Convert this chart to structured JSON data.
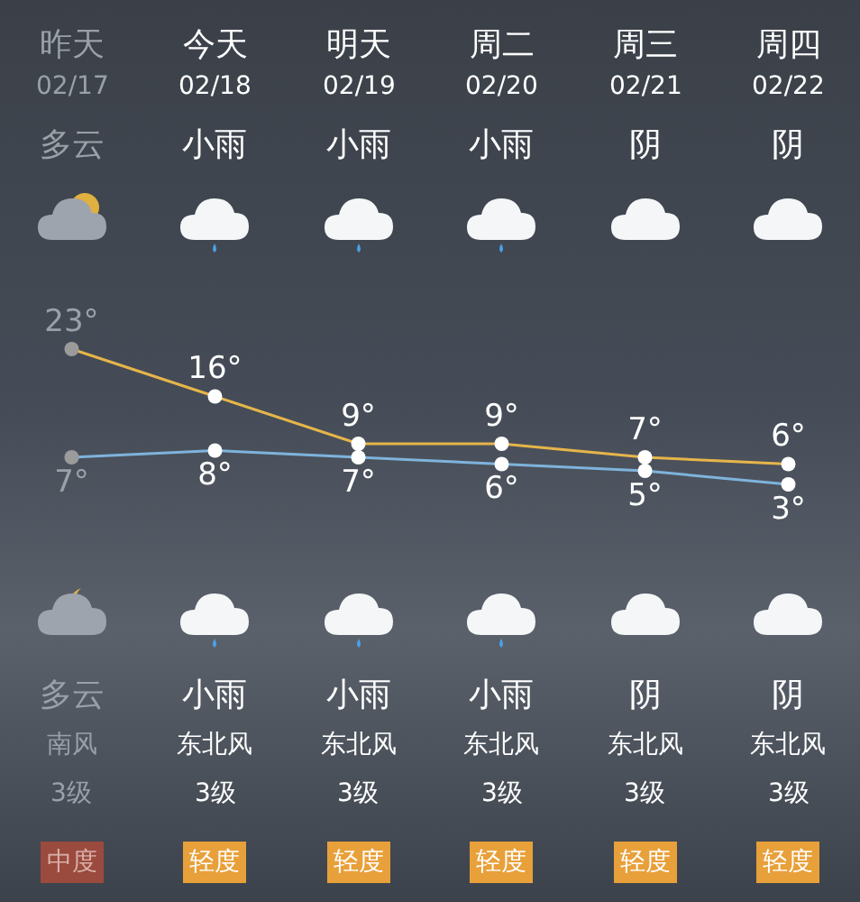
{
  "chart_data": {
    "type": "line",
    "categories": [
      "昨天",
      "今天",
      "明天",
      "周二",
      "周三",
      "周四"
    ],
    "series": [
      {
        "color": "#e6b54a",
        "colors": [
          "#9b9b9b",
          "#ffffff",
          "#ffffff",
          "#ffffff",
          "#ffffff",
          "#ffffff"
        ],
        "values": [
          23,
          16,
          9,
          9,
          7,
          6
        ],
        "value_labels": [
          "23°",
          "16°",
          "9°",
          "9°",
          "7°",
          "6°"
        ]
      },
      {
        "color": "#7fb3dc",
        "colors": [
          "#9b9b9b",
          "#ffffff",
          "#ffffff",
          "#ffffff",
          "#ffffff",
          "#ffffff"
        ],
        "values": [
          7,
          8,
          7,
          6,
          5,
          3
        ],
        "value_labels": [
          "7°",
          "8°",
          "7°",
          "6°",
          "5°",
          "3°"
        ]
      }
    ],
    "marker": "circle",
    "line_style": "solid",
    "annotations": [
      "02/17",
      "02/18",
      "02/19",
      "02/20",
      "02/21",
      "02/22",
      "多云",
      "小雨",
      "小雨",
      "小雨",
      "阴",
      "阴",
      "多云",
      "小雨",
      "小雨",
      "小雨",
      "阴",
      "阴",
      "南风",
      "东北风",
      "东北风",
      "东北风",
      "东北风",
      "东北风",
      "3级",
      "3级",
      "3级",
      "3级",
      "3级",
      "3级",
      "中度",
      "轻度",
      "轻度",
      "轻度",
      "轻度",
      "轻度"
    ]
  }
}
